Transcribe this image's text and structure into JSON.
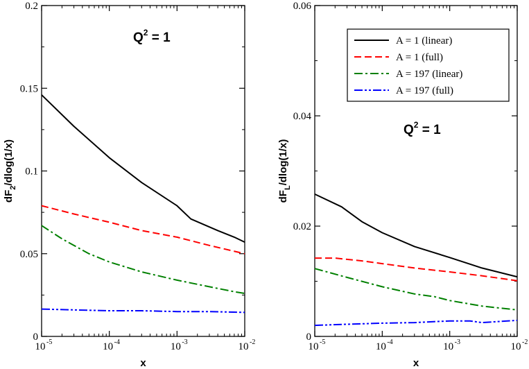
{
  "chart_data": [
    {
      "type": "line",
      "panel": "left",
      "xscale": "log",
      "xlim": [
        1e-05,
        0.01
      ],
      "ylim": [
        0,
        0.2
      ],
      "xlabel": "x",
      "ylabel": "dF_2/dlog(1/x)",
      "ylabel_parts": {
        "pre": "dF",
        "sub": "2",
        "post": "/dlog(1/x)"
      },
      "annotation": {
        "text": "Q",
        "sup": "2",
        "rest": " = 1"
      },
      "yticks": [
        0,
        0.05,
        0.1,
        0.15,
        0.2
      ],
      "ytick_labels": [
        "0",
        "0.05",
        "0.1",
        "0.15",
        "0.2"
      ],
      "xticks_exp": [
        -5,
        -4,
        -3,
        -2
      ],
      "series": [
        {
          "name": "A = 1 (linear)",
          "color": "#000000",
          "dash": "solid",
          "x": [
            1e-05,
            3e-05,
            0.0001,
            0.0003,
            0.001,
            0.0016,
            0.004,
            0.007,
            0.01
          ],
          "y": [
            0.146,
            0.127,
            0.108,
            0.093,
            0.079,
            0.071,
            0.064,
            0.06,
            0.057
          ]
        },
        {
          "name": "A = 1 (full)",
          "color": "#ff0000",
          "dash": "dashed",
          "x": [
            1e-05,
            3e-05,
            0.0001,
            0.0003,
            0.001,
            0.003,
            0.01
          ],
          "y": [
            0.079,
            0.074,
            0.069,
            0.064,
            0.06,
            0.055,
            0.05
          ]
        },
        {
          "name": "A = 197 (linear)",
          "color": "#008000",
          "dash": "dashdot",
          "x": [
            1e-05,
            2e-05,
            5e-05,
            0.0001,
            0.0003,
            0.001,
            0.003,
            0.007,
            0.01
          ],
          "y": [
            0.067,
            0.059,
            0.05,
            0.045,
            0.039,
            0.034,
            0.03,
            0.027,
            0.026
          ]
        },
        {
          "name": "A = 197 (full)",
          "color": "#0000ff",
          "dash": "dashdotdot",
          "x": [
            1e-05,
            3e-05,
            0.0001,
            0.0003,
            0.001,
            0.003,
            0.01
          ],
          "y": [
            0.0165,
            0.016,
            0.0155,
            0.0155,
            0.015,
            0.015,
            0.0145
          ]
        }
      ]
    },
    {
      "type": "line",
      "panel": "right",
      "xscale": "log",
      "xlim": [
        1e-05,
        0.01
      ],
      "ylim": [
        0,
        0.06
      ],
      "xlabel": "x",
      "ylabel": "dF_L/dlog(1/x)",
      "ylabel_parts": {
        "pre": "dF",
        "sub": "L",
        "post": "/dlog(1/x)"
      },
      "annotation": {
        "text": "Q",
        "sup": "2",
        "rest": " = 1"
      },
      "yticks": [
        0,
        0.02,
        0.04,
        0.06
      ],
      "ytick_labels": [
        "0",
        "0.02",
        "0.04",
        "0.06"
      ],
      "xticks_exp": [
        -5,
        -4,
        -3,
        -2
      ],
      "legend": {
        "position": "top-right"
      },
      "series": [
        {
          "name": "A = 1 (linear)",
          "color": "#000000",
          "dash": "solid",
          "x": [
            1e-05,
            2.5e-05,
            5e-05,
            0.0001,
            0.0003,
            0.001,
            0.003,
            0.01
          ],
          "y": [
            0.0258,
            0.0235,
            0.0208,
            0.0188,
            0.0163,
            0.0143,
            0.0124,
            0.0108
          ]
        },
        {
          "name": "A = 1 (full)",
          "color": "#ff0000",
          "dash": "dashed",
          "x": [
            1e-05,
            2e-05,
            5e-05,
            0.0001,
            0.0003,
            0.001,
            0.003,
            0.01
          ],
          "y": [
            0.0142,
            0.0142,
            0.0137,
            0.0132,
            0.0124,
            0.0117,
            0.011,
            0.0101
          ]
        },
        {
          "name": "A = 197 (linear)",
          "color": "#008000",
          "dash": "dashdot",
          "x": [
            1e-05,
            3e-05,
            0.0001,
            0.0003,
            0.0006,
            0.001,
            0.003,
            0.01
          ],
          "y": [
            0.0123,
            0.0107,
            0.009,
            0.0077,
            0.0072,
            0.0065,
            0.0055,
            0.0048
          ]
        },
        {
          "name": "A = 197 (full)",
          "color": "#0000ff",
          "dash": "dashdotdot",
          "x": [
            1e-05,
            3e-05,
            0.0001,
            0.0003,
            0.001,
            0.002,
            0.003,
            0.01
          ],
          "y": [
            0.002,
            0.0022,
            0.0024,
            0.0025,
            0.0028,
            0.0028,
            0.0025,
            0.0029
          ]
        }
      ]
    }
  ]
}
